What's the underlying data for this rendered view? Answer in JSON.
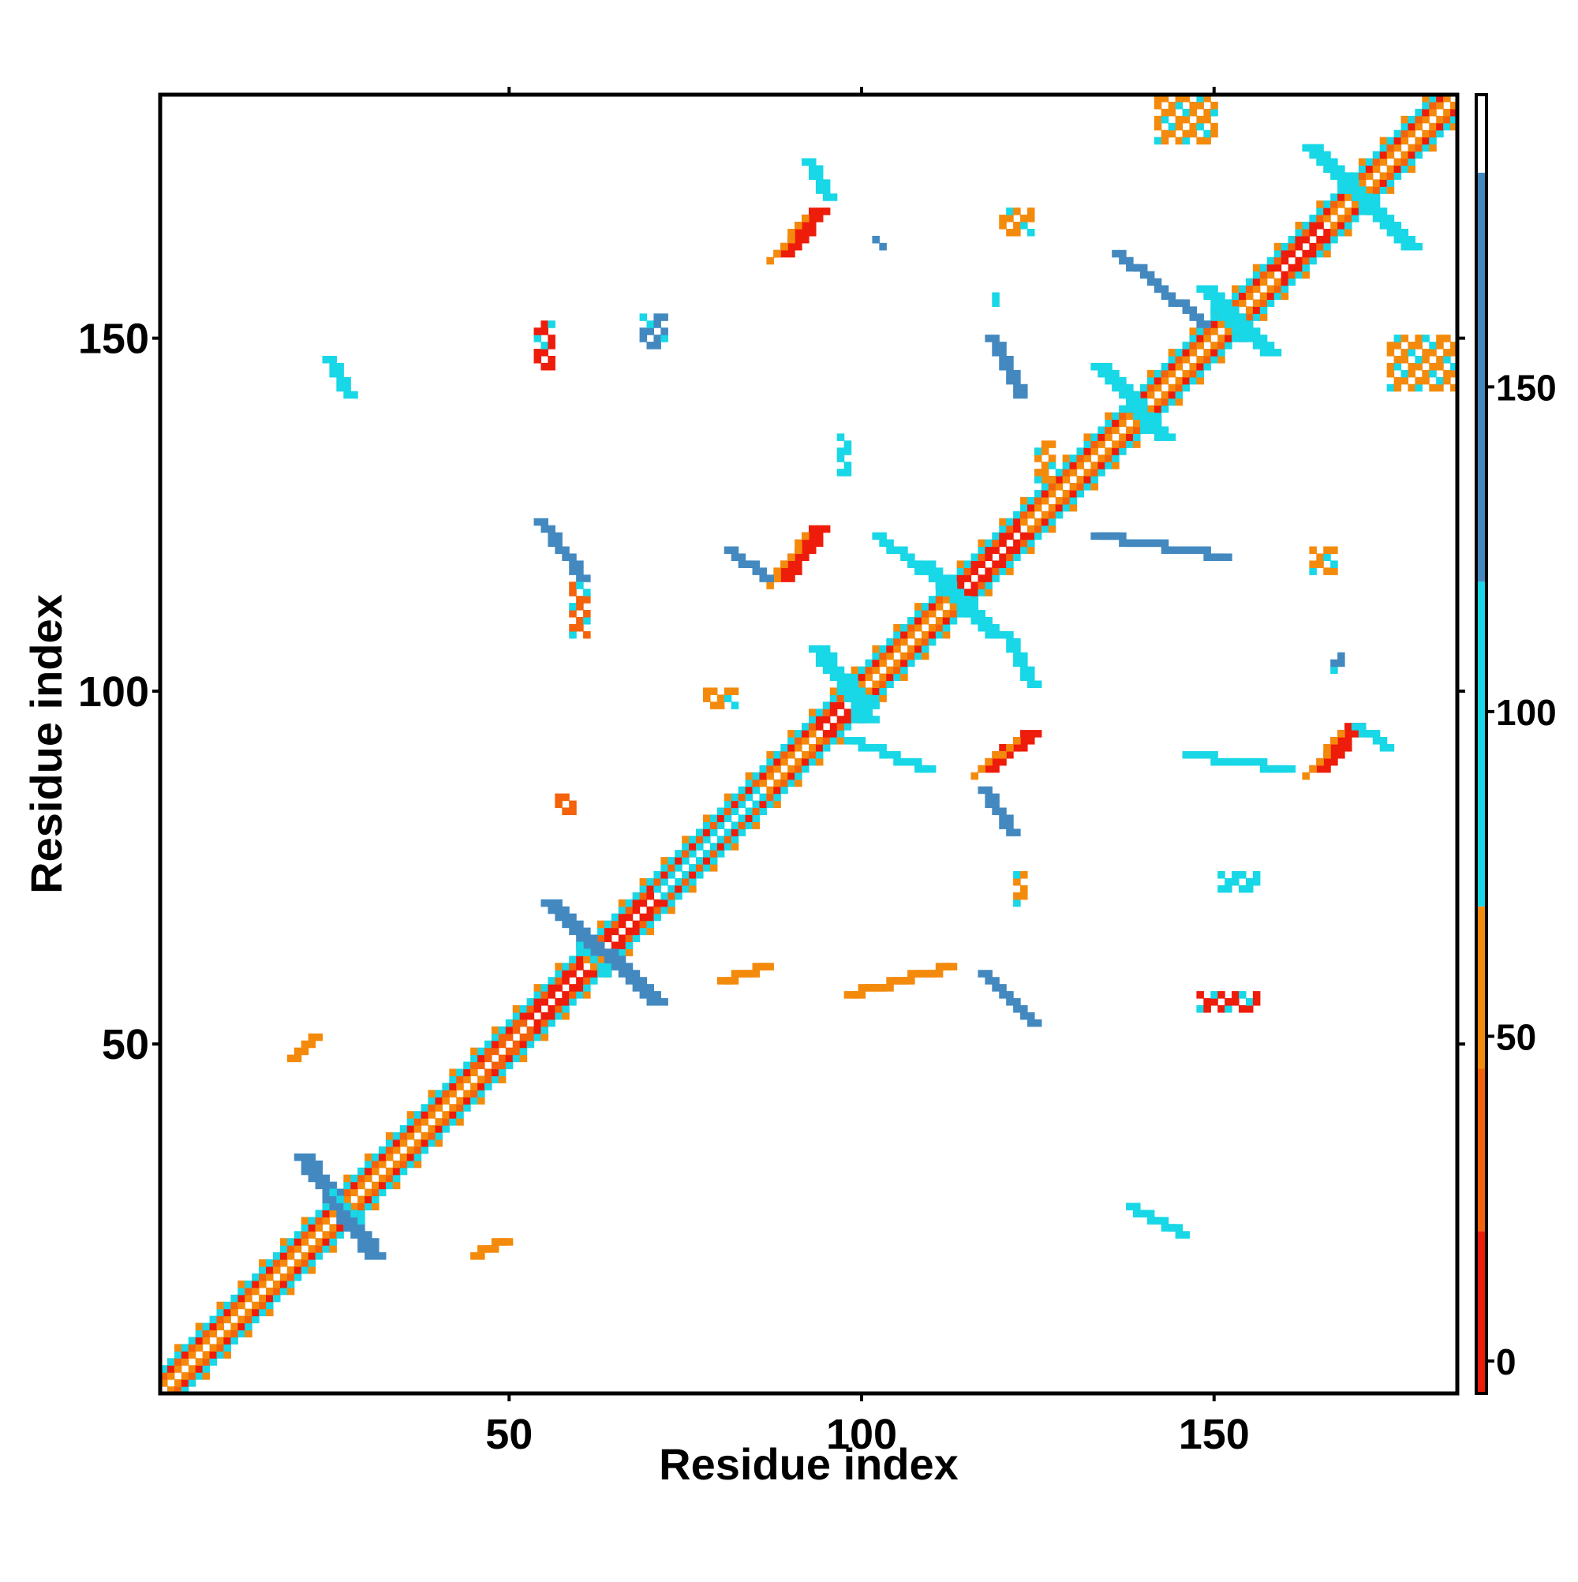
{
  "chart_data": {
    "type": "heatmap",
    "title": "",
    "xlabel": "Residue index",
    "ylabel": "Residue index",
    "xlim": [
      1,
      184
    ],
    "ylim": [
      1,
      184
    ],
    "x_ticks": [
      {
        "value": 50,
        "label": "50"
      },
      {
        "value": 100,
        "label": "100"
      },
      {
        "value": 150,
        "label": "150"
      }
    ],
    "y_ticks": [
      {
        "value": 50,
        "label": "50"
      },
      {
        "value": 100,
        "label": "100"
      },
      {
        "value": 150,
        "label": "150"
      }
    ],
    "grid": false,
    "legend": "colorbar-right",
    "colorbar": {
      "ticks": [
        {
          "value": 0,
          "label": "0"
        },
        {
          "value": 50,
          "label": "50"
        },
        {
          "value": 100,
          "label": "100"
        },
        {
          "value": 150,
          "label": "150"
        }
      ],
      "range": [
        -5,
        195
      ],
      "bands": [
        {
          "from": -5,
          "to": 20,
          "color": "#ee1c0a"
        },
        {
          "from": 20,
          "to": 45,
          "color": "#f4620b"
        },
        {
          "from": 45,
          "to": 70,
          "color": "#f48a0c"
        },
        {
          "from": 70,
          "to": 120,
          "color": "#18d7e6"
        },
        {
          "from": 120,
          "to": 183,
          "color": "#4389c0"
        },
        {
          "from": 183,
          "to": 195,
          "color": "#ffffff"
        }
      ]
    },
    "colors": {
      "red": "#ee1c0a",
      "orange_red": "#f4620b",
      "orange": "#f48a0c",
      "cyan": "#18d7e6",
      "blue": "#4389c0"
    },
    "features": {
      "diagonal": {
        "from": 1,
        "to": 184
      },
      "helix_blocks": [
        {
          "start": 5,
          "end": 22,
          "color": "orange"
        },
        {
          "start": 24,
          "end": 44,
          "color": "orange"
        },
        {
          "start": 46,
          "end": 52,
          "color": "orange_red"
        },
        {
          "start": 52,
          "end": 60,
          "color": "red"
        },
        {
          "start": 63,
          "end": 70,
          "color": "red"
        },
        {
          "start": 70,
          "end": 85,
          "color": "cyan"
        },
        {
          "start": 85,
          "end": 93,
          "color": "orange"
        },
        {
          "start": 92,
          "end": 97,
          "color": "red"
        },
        {
          "start": 97,
          "end": 113,
          "color": "orange"
        },
        {
          "start": 114,
          "end": 122,
          "color": "red"
        },
        {
          "start": 122,
          "end": 137,
          "color": "orange"
        },
        {
          "start": 137,
          "end": 158,
          "color": "orange"
        },
        {
          "start": 158,
          "end": 165,
          "color": "red"
        },
        {
          "start": 166,
          "end": 184,
          "color": "orange"
        }
      ],
      "antidiagonal_arms": [
        {
          "x": 27,
          "y": 27,
          "x1": 20,
          "y1": 34,
          "x2": 30,
          "y2": 20,
          "color": "blue"
        },
        {
          "x": 62,
          "y": 62,
          "x1": 55,
          "y1": 70,
          "x2": 70,
          "y2": 56,
          "color": "blue"
        },
        {
          "x": 100,
          "y": 100,
          "x1": 93,
          "y1": 106,
          "x2": 100,
          "y2": 96,
          "color": "cyan"
        },
        {
          "x": 113,
          "y": 113,
          "x1": 108,
          "y1": 118,
          "x2": 118,
          "y2": 108,
          "color": "cyan"
        },
        {
          "x": 140,
          "y": 140,
          "x1": 133,
          "y1": 146,
          "x2": 142,
          "y2": 136,
          "color": "cyan"
        },
        {
          "x": 152,
          "y": 152,
          "x1": 148,
          "y1": 157,
          "x2": 157,
          "y2": 148,
          "color": "cyan"
        },
        {
          "x": 170,
          "y": 170,
          "x1": 163,
          "y1": 177,
          "x2": 177,
          "y2": 163,
          "color": "cyan"
        }
      ],
      "offdiag_segments": [
        {
          "x1": 54,
          "y1": 124,
          "x2": 60,
          "y2": 116,
          "color": "blue"
        },
        {
          "x1": 117,
          "y1": 60,
          "x2": 124,
          "y2": 53,
          "color": "blue"
        },
        {
          "x1": 88,
          "y1": 116,
          "x2": 93,
          "y2": 123,
          "color": "red"
        },
        {
          "x1": 117,
          "y1": 89,
          "x2": 123,
          "y2": 94,
          "color": "red"
        },
        {
          "x1": 164,
          "y1": 89,
          "x2": 169,
          "y2": 95,
          "color": "red"
        },
        {
          "x1": 88,
          "y1": 162,
          "x2": 93,
          "y2": 168,
          "color": "red"
        },
        {
          "x1": 81,
          "y1": 120,
          "x2": 86,
          "y2": 116,
          "color": "blue"
        },
        {
          "x1": 117,
          "y1": 86,
          "x2": 121,
          "y2": 80,
          "color": "blue"
        },
        {
          "x1": 92,
          "y1": 175,
          "x2": 95,
          "y2": 170,
          "color": "cyan"
        },
        {
          "x1": 24,
          "y1": 147,
          "x2": 27,
          "y2": 142,
          "color": "cyan"
        },
        {
          "x1": 19,
          "y1": 48,
          "x2": 22,
          "y2": 51,
          "color": "orange"
        },
        {
          "x1": 45,
          "y1": 20,
          "x2": 49,
          "y2": 22,
          "color": "orange"
        },
        {
          "x1": 138,
          "y1": 27,
          "x2": 145,
          "y2": 23,
          "color": "cyan"
        },
        {
          "x1": 170,
          "y1": 95,
          "x2": 174,
          "y2": 92,
          "color": "cyan"
        },
        {
          "x1": 146,
          "y1": 91,
          "x2": 160,
          "y2": 89,
          "color": "cyan"
        },
        {
          "x1": 98,
          "y1": 93,
          "x2": 109,
          "y2": 89,
          "color": "cyan"
        },
        {
          "x1": 102,
          "y1": 122,
          "x2": 111,
          "y2": 115,
          "color": "cyan"
        },
        {
          "x1": 120,
          "y1": 108,
          "x2": 124,
          "y2": 101,
          "color": "cyan"
        },
        {
          "x1": 133,
          "y1": 122,
          "x2": 151,
          "y2": 119,
          "color": "blue"
        },
        {
          "x1": 118,
          "y1": 150,
          "x2": 122,
          "y2": 142,
          "color": "blue"
        },
        {
          "x1": 136,
          "y1": 162,
          "x2": 148,
          "y2": 152,
          "color": "blue"
        },
        {
          "x1": 80,
          "y1": 59,
          "x2": 86,
          "y2": 61,
          "color": "orange"
        },
        {
          "x1": 98,
          "y1": 57,
          "x2": 112,
          "y2": 61,
          "color": "orange"
        }
      ],
      "scatter_clusters": [
        {
          "x": 142,
          "y": 178,
          "w": 9,
          "h": 9,
          "color": "orange"
        },
        {
          "x": 175,
          "y": 143,
          "w": 10,
          "h": 8,
          "color": "orange"
        },
        {
          "x": 59,
          "y": 108,
          "w": 3,
          "h": 8,
          "color": "orange_red"
        },
        {
          "x": 57,
          "y": 83,
          "w": 3,
          "h": 3,
          "color": "orange_red"
        },
        {
          "x": 54,
          "y": 146,
          "w": 3,
          "h": 7,
          "color": "red"
        },
        {
          "x": 120,
          "y": 165,
          "w": 5,
          "h": 4,
          "color": "orange"
        },
        {
          "x": 164,
          "y": 117,
          "w": 4,
          "h": 4,
          "color": "orange"
        },
        {
          "x": 122,
          "y": 70,
          "w": 2,
          "h": 5,
          "color": "orange"
        },
        {
          "x": 148,
          "y": 55,
          "w": 9,
          "h": 3,
          "color": "red"
        },
        {
          "x": 151,
          "y": 72,
          "w": 6,
          "h": 3,
          "color": "cyan"
        },
        {
          "x": 167,
          "y": 103,
          "w": 2,
          "h": 3,
          "color": "blue"
        },
        {
          "x": 102,
          "y": 163,
          "w": 2,
          "h": 2,
          "color": "blue"
        },
        {
          "x": 119,
          "y": 155,
          "w": 1,
          "h": 2,
          "color": "cyan"
        },
        {
          "x": 97,
          "y": 131,
          "w": 2,
          "h": 6,
          "color": "cyan"
        },
        {
          "x": 125,
          "y": 130,
          "w": 3,
          "h": 6,
          "color": "orange"
        },
        {
          "x": 69,
          "y": 149,
          "w": 4,
          "h": 5,
          "color": "blue"
        },
        {
          "x": 78,
          "y": 98,
          "w": 5,
          "h": 3,
          "color": "orange"
        }
      ]
    }
  }
}
